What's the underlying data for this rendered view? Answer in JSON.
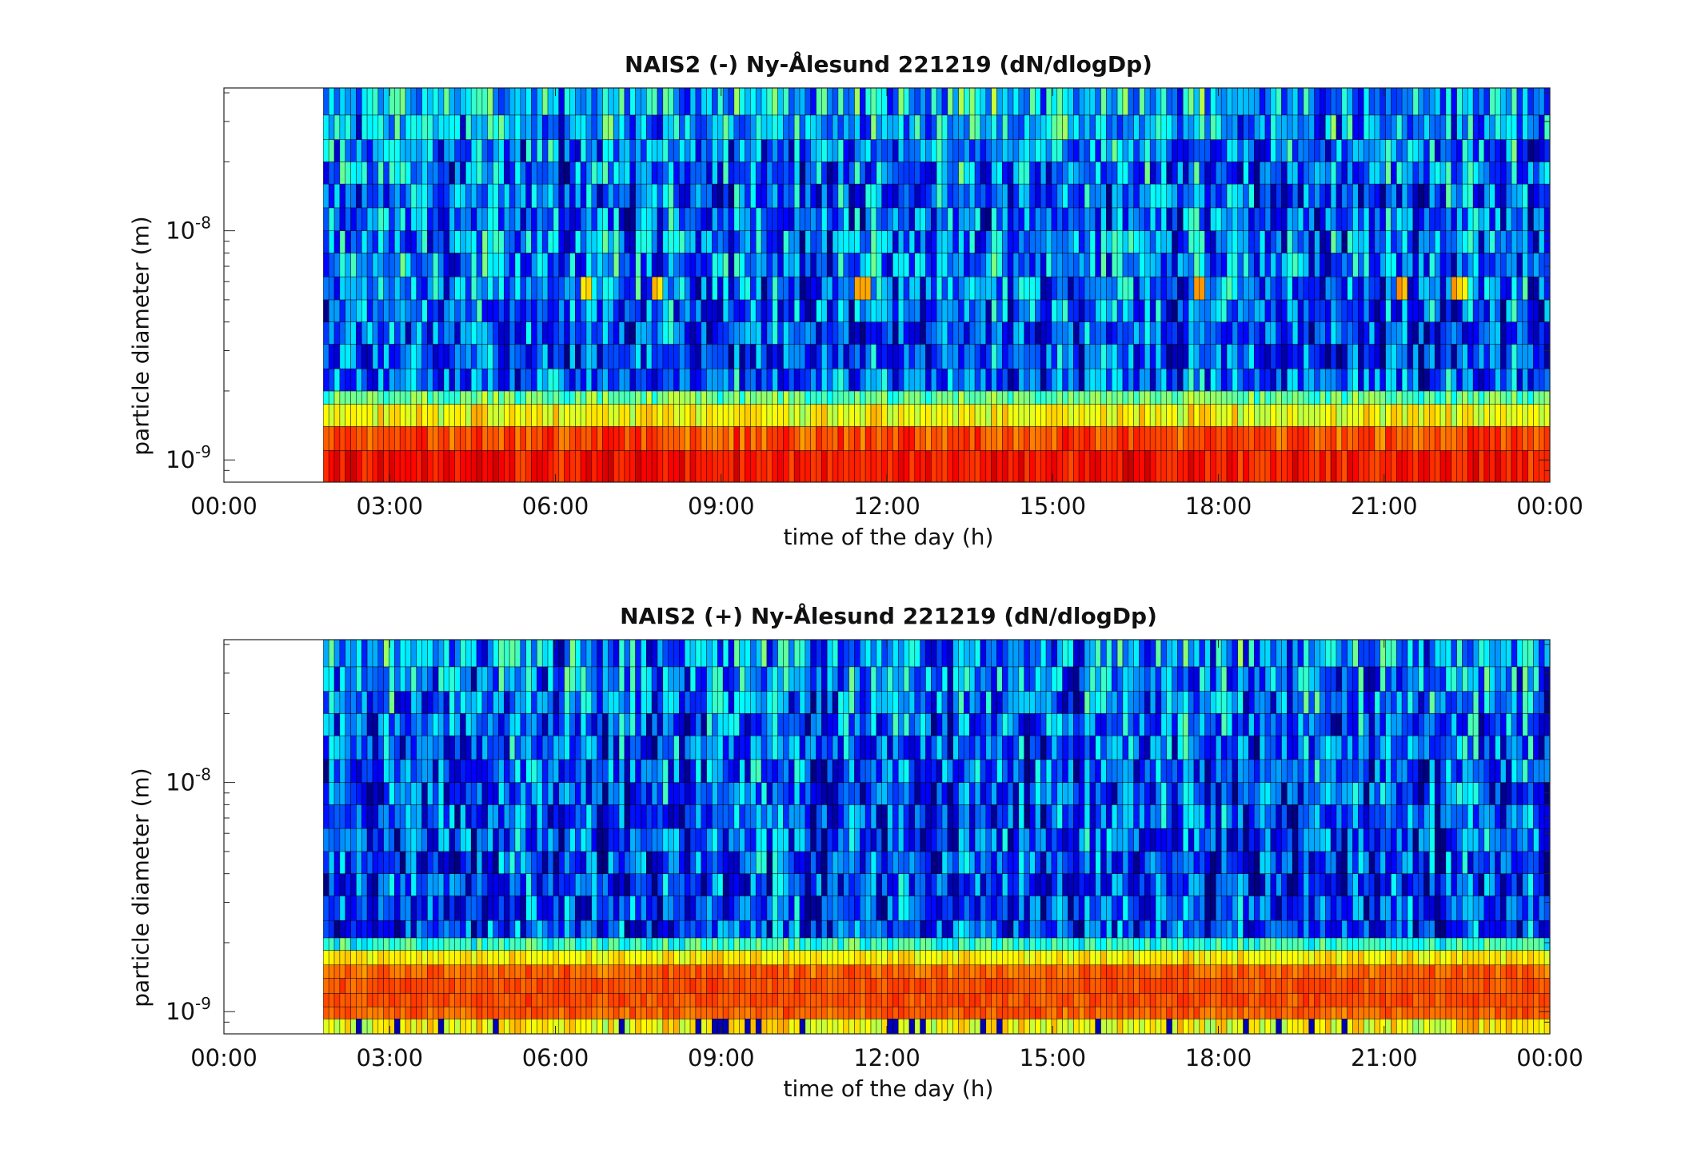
{
  "chart_data": [
    {
      "type": "heatmap",
      "title": "NAIS2 (-) Ny-Ålesund 221219 (dN/dlogDp)",
      "xlabel": "time of the day (h)",
      "ylabel": "particle diameter (m)",
      "x_tick_labels": [
        "00:00",
        "03:00",
        "06:00",
        "09:00",
        "12:00",
        "15:00",
        "18:00",
        "21:00",
        "00:00"
      ],
      "x_tick_hours": [
        0,
        3,
        6,
        9,
        12,
        15,
        18,
        21,
        24
      ],
      "xlim_hours": [
        0,
        24
      ],
      "y_scale": "log",
      "ylim_m": [
        8e-10,
        4.2e-08
      ],
      "y_tick_values": [
        1e-09,
        1e-08
      ],
      "y_tick_base": "10",
      "y_tick_exponents": [
        "-9",
        "-8"
      ],
      "data_start_hour": 1.8,
      "colormap": "jet",
      "description_levels": {
        "largest_sizes_3e-9_to_4e-8_m": "low (dark blue to cyan, highly variable)",
        "band_near_6e-9_m": "occasional yellow/orange spikes near 06:30, 07:50, 11:30, 17:40, 21:20, 22:20",
        "band_1.7e-9_to_2e-9_m": "cyan to yellow",
        "smallest_8e-10_to_1.4e-9_m": "high (orange to red, continuous)"
      },
      "band_edges_m": [
        8e-10,
        1.1e-09,
        1.4e-09,
        1.75e-09,
        2e-09,
        2.5e-09,
        3.2e-09,
        4e-09,
        5e-09,
        6.3e-09,
        8e-09,
        1e-08,
        1.26e-08,
        1.6e-08,
        2e-08,
        2.5e-08,
        3.2e-08,
        4.2e-08
      ],
      "band_base_level": [
        0.86,
        0.8,
        0.62,
        0.48,
        0.22,
        0.2,
        0.2,
        0.22,
        0.24,
        0.26,
        0.24,
        0.22,
        0.22,
        0.24,
        0.26,
        0.28,
        0.32
      ],
      "band_variability": [
        0.05,
        0.06,
        0.07,
        0.08,
        0.16,
        0.16,
        0.16,
        0.17,
        0.18,
        0.17,
        0.18,
        0.18,
        0.18,
        0.18,
        0.18,
        0.18,
        0.18
      ],
      "spike_hours": [
        6.5,
        7.8,
        11.5,
        17.6,
        21.3,
        22.3
      ],
      "spike_band_index": 8
    },
    {
      "type": "heatmap",
      "title": "NAIS2 (+) Ny-Ålesund 221219 (dN/dlogDp)",
      "xlabel": "time of the day (h)",
      "ylabel": "particle diameter (m)",
      "x_tick_labels": [
        "00:00",
        "03:00",
        "06:00",
        "09:00",
        "12:00",
        "15:00",
        "18:00",
        "21:00",
        "00:00"
      ],
      "x_tick_hours": [
        0,
        3,
        6,
        9,
        12,
        15,
        18,
        21,
        24
      ],
      "xlim_hours": [
        0,
        24
      ],
      "y_scale": "log",
      "ylim_m": [
        8e-10,
        4.2e-08
      ],
      "y_tick_values": [
        1e-09,
        1e-08
      ],
      "y_tick_base": "10",
      "y_tick_exponents": [
        "-9",
        "-8"
      ],
      "data_start_hour": 1.8,
      "colormap": "jet",
      "description_levels": {
        "largest_sizes_2e-9_to_4e-8_m": "low (dark blue to cyan, vertical streaks)",
        "band_1.7e-9_to_2e-9_m": "yellow",
        "band_1e-9_to_1.6e-9_m": "orange (highest)",
        "smallest_8e-10_to_9e-10_m": "yellow with occasional dark blue gaps"
      },
      "band_edges_m": [
        8e-10,
        9.3e-10,
        1.05e-09,
        1.2e-09,
        1.4e-09,
        1.6e-09,
        1.85e-09,
        2.1e-09,
        2.5e-09,
        3.2e-09,
        4e-09,
        5e-09,
        6.3e-09,
        8e-09,
        1e-08,
        1.26e-08,
        1.6e-08,
        2e-08,
        2.5e-08,
        3.2e-08,
        4.2e-08
      ],
      "band_base_level": [
        0.62,
        0.78,
        0.8,
        0.8,
        0.78,
        0.64,
        0.42,
        0.18,
        0.18,
        0.18,
        0.19,
        0.2,
        0.2,
        0.2,
        0.21,
        0.22,
        0.22,
        0.24,
        0.26,
        0.28
      ],
      "band_variability": [
        0.08,
        0.04,
        0.03,
        0.03,
        0.04,
        0.05,
        0.08,
        0.16,
        0.16,
        0.17,
        0.17,
        0.17,
        0.17,
        0.17,
        0.17,
        0.17,
        0.18,
        0.18,
        0.18,
        0.18
      ],
      "spike_hours": [],
      "spike_band_index": -1
    }
  ]
}
